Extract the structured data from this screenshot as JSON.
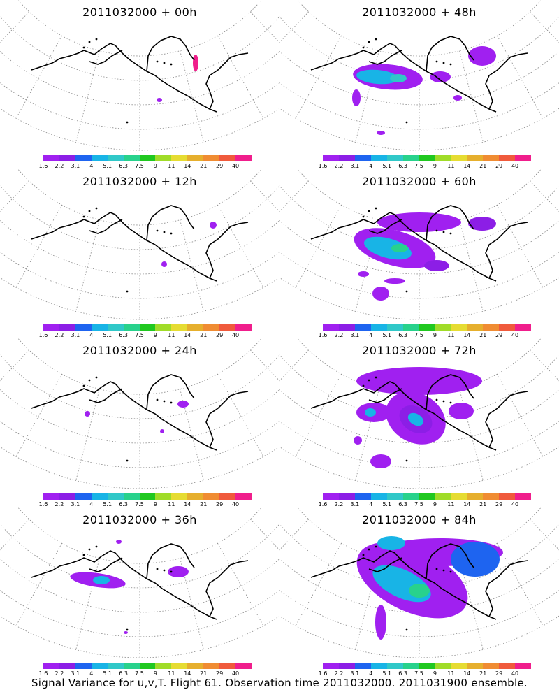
{
  "colorbar": {
    "colors": [
      "#a020f0",
      "#8c1ee6",
      "#1e64f0",
      "#18b4e6",
      "#30c8c8",
      "#28d28c",
      "#20c820",
      "#a0dc28",
      "#e6dc32",
      "#e6af2d",
      "#f08c32",
      "#f05a3c",
      "#f01e8c"
    ],
    "labels": [
      "1.6",
      "2.2",
      "3.1",
      "4",
      "5.1",
      "6.3",
      "7.5",
      "9",
      "11",
      "14",
      "21",
      "29",
      "40"
    ]
  },
  "panels": [
    {
      "title": "2011032000 + 00h"
    },
    {
      "title": "2011032000 + 48h"
    },
    {
      "title": "2011032000 + 12h"
    },
    {
      "title": "2011032000 + 60h"
    },
    {
      "title": "2011032000 + 24h"
    },
    {
      "title": "2011032000 + 72h"
    },
    {
      "title": "2011032000 + 36h"
    },
    {
      "title": "2011032000 + 84h"
    }
  ],
  "footer": "Signal Variance for u,v,T. Flight 61. Observation time 2011032000. 2011031900 ensemble."
}
